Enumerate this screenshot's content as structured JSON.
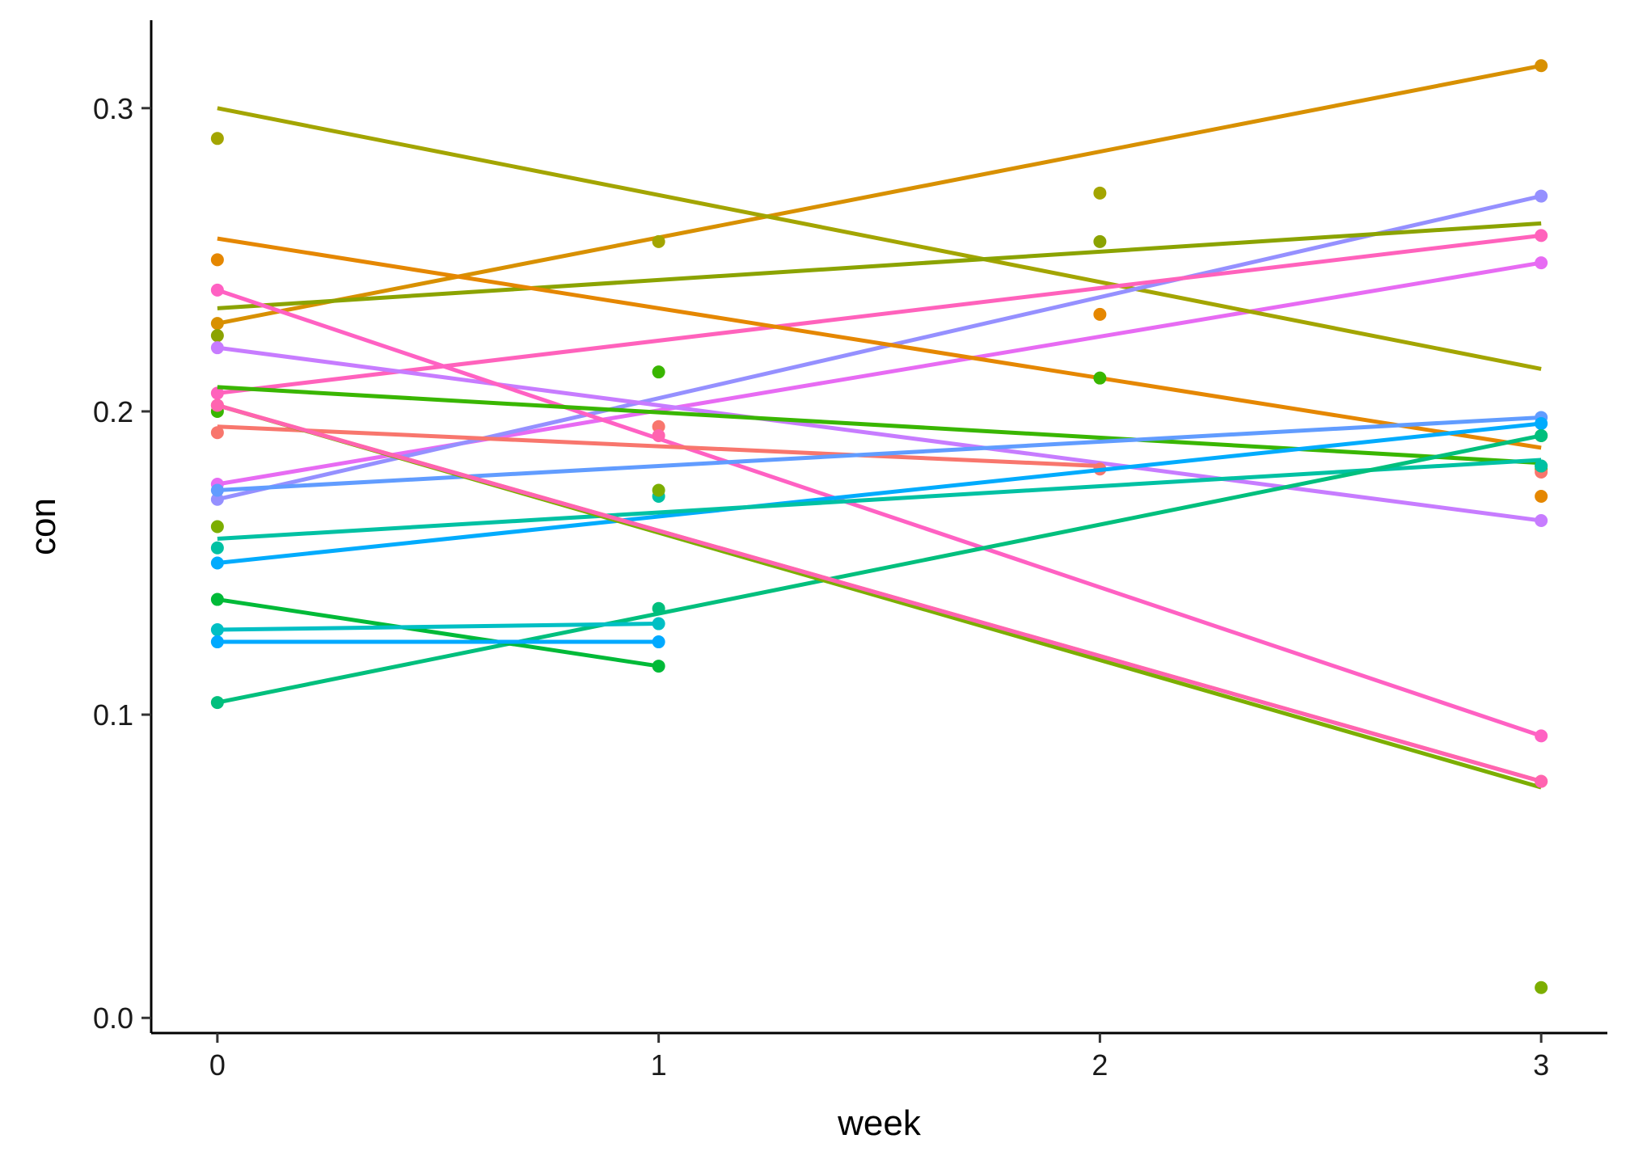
{
  "chart_data": {
    "type": "line",
    "xlabel": "week",
    "ylabel": "con",
    "xlim": [
      -0.15,
      3.15
    ],
    "ylim": [
      -0.005,
      0.329
    ],
    "x_ticks": [
      0,
      1,
      2,
      3
    ],
    "y_ticks": [
      0.0,
      0.1,
      0.2,
      0.3
    ],
    "x_tick_labels": [
      "0",
      "1",
      "2",
      "3"
    ],
    "y_tick_labels": [
      "0.0",
      "0.1",
      "0.2",
      "0.3"
    ],
    "grid": false,
    "legend": "none",
    "series": [
      {
        "color": "#E76BF3",
        "points": [
          [
            0,
            0.176
          ],
          [
            3,
            0.249
          ]
        ],
        "fit": [
          [
            0,
            0.176
          ],
          [
            3,
            0.249
          ]
        ]
      },
      {
        "color": "#D89000",
        "points": [
          [
            0,
            0.229
          ],
          [
            3,
            0.314
          ]
        ],
        "fit": [
          [
            0,
            0.229
          ],
          [
            3,
            0.314
          ]
        ]
      },
      {
        "color": "#A3A500",
        "points": [
          [
            0,
            0.29
          ],
          [
            1,
            0.256
          ],
          [
            2,
            0.272
          ],
          [
            3,
            0.192
          ]
        ],
        "fit": [
          [
            0,
            0.3
          ],
          [
            3,
            0.214
          ]
        ]
      },
      {
        "color": "#9590FF",
        "points": [
          [
            0,
            0.171
          ],
          [
            3,
            0.271
          ]
        ],
        "fit": [
          [
            0,
            0.171
          ],
          [
            3,
            0.271
          ]
        ]
      },
      {
        "color": "#FF62BC",
        "points": [
          [
            0,
            0.206
          ],
          [
            3,
            0.258
          ]
        ],
        "fit": [
          [
            0,
            0.206
          ],
          [
            3,
            0.258
          ]
        ]
      },
      {
        "color": "#8BA300",
        "points": [
          [
            0,
            0.225
          ],
          [
            2,
            0.256
          ],
          [
            3,
            0.181
          ]
        ],
        "fit": [
          [
            0,
            0.234
          ],
          [
            3,
            0.262
          ]
        ]
      },
      {
        "color": "#E58700",
        "points": [
          [
            0,
            0.25
          ],
          [
            2,
            0.232
          ],
          [
            3,
            0.172
          ]
        ],
        "fit": [
          [
            0,
            0.257
          ],
          [
            3,
            0.188
          ]
        ]
      },
      {
        "color": "#C77CFF",
        "points": [
          [
            0,
            0.221
          ],
          [
            3,
            0.164
          ]
        ],
        "fit": [
          [
            0,
            0.221
          ],
          [
            3,
            0.164
          ]
        ]
      },
      {
        "color": "#FF61C3",
        "points": [
          [
            0,
            0.24
          ],
          [
            3,
            0.093
          ]
        ],
        "fit": [
          [
            0,
            0.24
          ],
          [
            3,
            0.093
          ]
        ]
      },
      {
        "color": "#F8766D",
        "points": [
          [
            0,
            0.193
          ],
          [
            1,
            0.195
          ],
          [
            2,
            0.181
          ],
          [
            3,
            0.18
          ]
        ],
        "fit": [
          [
            0,
            0.195
          ],
          [
            2,
            0.182
          ]
        ]
      },
      {
        "color": "#39B600",
        "points": [
          [
            0,
            0.2
          ],
          [
            1,
            0.213
          ],
          [
            2,
            0.211
          ],
          [
            3,
            0.182
          ]
        ],
        "fit": [
          [
            0,
            0.208
          ],
          [
            3,
            0.183
          ]
        ]
      },
      {
        "color": "#619CFF",
        "points": [
          [
            0,
            0.174
          ],
          [
            3,
            0.198
          ]
        ],
        "fit": [
          [
            0,
            0.174
          ],
          [
            3,
            0.198
          ]
        ]
      },
      {
        "color": "#00ABFD",
        "points": [
          [
            0,
            0.15
          ],
          [
            3,
            0.196
          ]
        ],
        "fit": [
          [
            0,
            0.15
          ],
          [
            3,
            0.196
          ]
        ]
      },
      {
        "color": "#00C1A3",
        "points": [
          [
            0,
            0.155
          ],
          [
            1,
            0.172
          ],
          [
            3,
            0.182
          ]
        ],
        "fit": [
          [
            0,
            0.158
          ],
          [
            3,
            0.184
          ]
        ]
      },
      {
        "color": "#00BF7D",
        "points": [
          [
            0,
            0.104
          ],
          [
            1,
            0.135
          ],
          [
            3,
            0.192
          ]
        ],
        "fit": [
          [
            0,
            0.104
          ],
          [
            3,
            0.192
          ]
        ]
      },
      {
        "color": "#00BA38",
        "points": [
          [
            0,
            0.138
          ],
          [
            1,
            0.116
          ]
        ],
        "fit": [
          [
            0,
            0.138
          ],
          [
            1,
            0.116
          ]
        ]
      },
      {
        "color": "#00BFC4",
        "points": [
          [
            0,
            0.128
          ],
          [
            1,
            0.13
          ]
        ],
        "fit": [
          [
            0,
            0.128
          ],
          [
            1,
            0.13
          ]
        ]
      },
      {
        "color": "#00A9FF",
        "points": [
          [
            0,
            0.124
          ],
          [
            1,
            0.124
          ]
        ],
        "fit": [
          [
            0,
            0.124
          ],
          [
            1,
            0.124
          ]
        ]
      },
      {
        "color": "#7CAE00",
        "points": [
          [
            0,
            0.162
          ],
          [
            1,
            0.174
          ],
          [
            3,
            0.01
          ]
        ],
        "fit": [
          [
            0,
            0.202
          ],
          [
            3,
            0.076
          ]
        ]
      },
      {
        "color": "#F8766D",
        "points": [
          [
            0,
            0.202
          ],
          [
            3,
            0.078
          ]
        ],
        "fit": [
          [
            0,
            0.202
          ],
          [
            3,
            0.078
          ]
        ]
      },
      {
        "color": "#FF64B0",
        "points": [
          [
            0,
            0.202
          ],
          [
            1,
            0.192
          ],
          [
            3,
            0.078
          ]
        ],
        "fit": [
          [
            0,
            0.202
          ],
          [
            3,
            0.078
          ]
        ]
      }
    ]
  }
}
